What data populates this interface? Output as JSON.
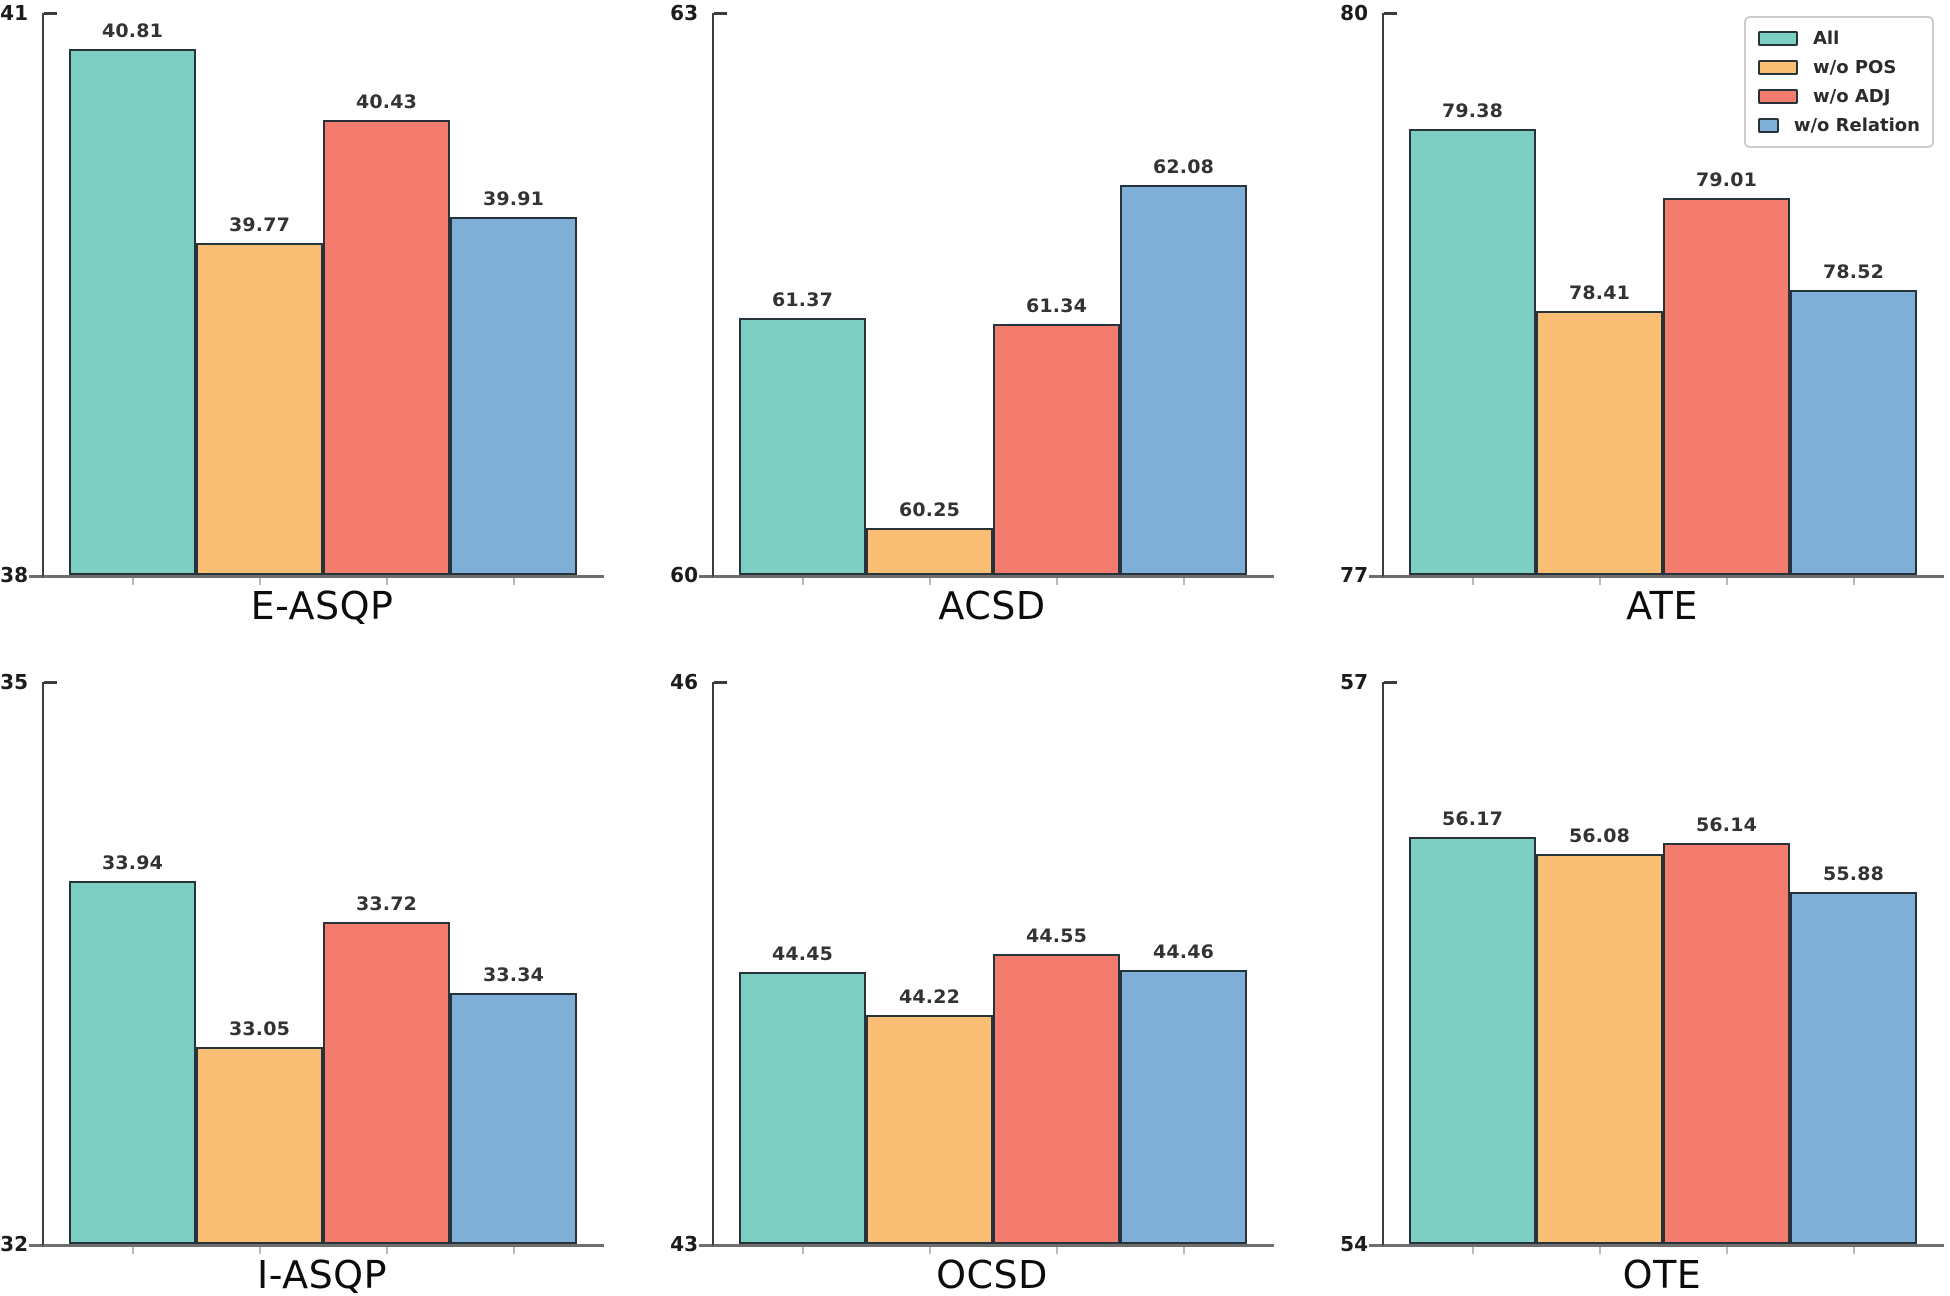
{
  "figure": {
    "background": "#ffffff",
    "description": "Ablation study bar charts across six tasks"
  },
  "legend": {
    "position": "top-right",
    "entries": [
      {
        "label": "All",
        "color": "#7DCEC3"
      },
      {
        "label": "w/o POS",
        "color": "#F9BD74"
      },
      {
        "label": "w/o ADJ",
        "color": "#F37C6E"
      },
      {
        "label": "w/o Relation",
        "color": "#7FAFD6"
      }
    ]
  },
  "style": {
    "bar_edge_color": "#27333A",
    "spine_color": "#3D3D3D",
    "baseline_color": "#6E6E6E",
    "xtick_color": "#B9B9B9",
    "tick_label_color": "#1C1C1C",
    "value_label_color": "#333333",
    "title_color": "#0C0C0C",
    "legend_border_color": "#CCCCCC"
  },
  "chart_data": [
    {
      "type": "bar",
      "title": "E-ASQP",
      "categories": [
        "All",
        "w/o POS",
        "w/o ADJ",
        "w/o Relation"
      ],
      "values": [
        40.81,
        39.77,
        40.43,
        39.91
      ],
      "ylim": [
        38,
        41
      ],
      "yticks": [
        38,
        41
      ],
      "grid": false,
      "legend_position": "none"
    },
    {
      "type": "bar",
      "title": "ACSD",
      "categories": [
        "All",
        "w/o POS",
        "w/o ADJ",
        "w/o Relation"
      ],
      "values": [
        61.37,
        60.25,
        61.34,
        62.08
      ],
      "ylim": [
        60,
        63
      ],
      "yticks": [
        60,
        63
      ],
      "grid": false,
      "legend_position": "none"
    },
    {
      "type": "bar",
      "title": "ATE",
      "categories": [
        "All",
        "w/o POS",
        "w/o ADJ",
        "w/o Relation"
      ],
      "values": [
        79.38,
        78.41,
        79.01,
        78.52
      ],
      "ylim": [
        77,
        80
      ],
      "yticks": [
        77,
        80
      ],
      "grid": false,
      "legend_position": "figure-top-right"
    },
    {
      "type": "bar",
      "title": "I-ASQP",
      "categories": [
        "All",
        "w/o POS",
        "w/o ADJ",
        "w/o Relation"
      ],
      "values": [
        33.94,
        33.05,
        33.72,
        33.34
      ],
      "ylim": [
        32,
        35
      ],
      "yticks": [
        32,
        35
      ],
      "grid": false,
      "legend_position": "none"
    },
    {
      "type": "bar",
      "title": "OCSD",
      "categories": [
        "All",
        "w/o POS",
        "w/o ADJ",
        "w/o Relation"
      ],
      "values": [
        44.45,
        44.22,
        44.55,
        44.46
      ],
      "ylim": [
        43,
        46
      ],
      "yticks": [
        43,
        46
      ],
      "grid": false,
      "legend_position": "none"
    },
    {
      "type": "bar",
      "title": "OTE",
      "categories": [
        "All",
        "w/o POS",
        "w/o ADJ",
        "w/o Relation"
      ],
      "values": [
        56.17,
        56.08,
        56.14,
        55.88
      ],
      "ylim": [
        54,
        57
      ],
      "yticks": [
        54,
        57
      ],
      "grid": false,
      "legend_position": "none"
    }
  ]
}
